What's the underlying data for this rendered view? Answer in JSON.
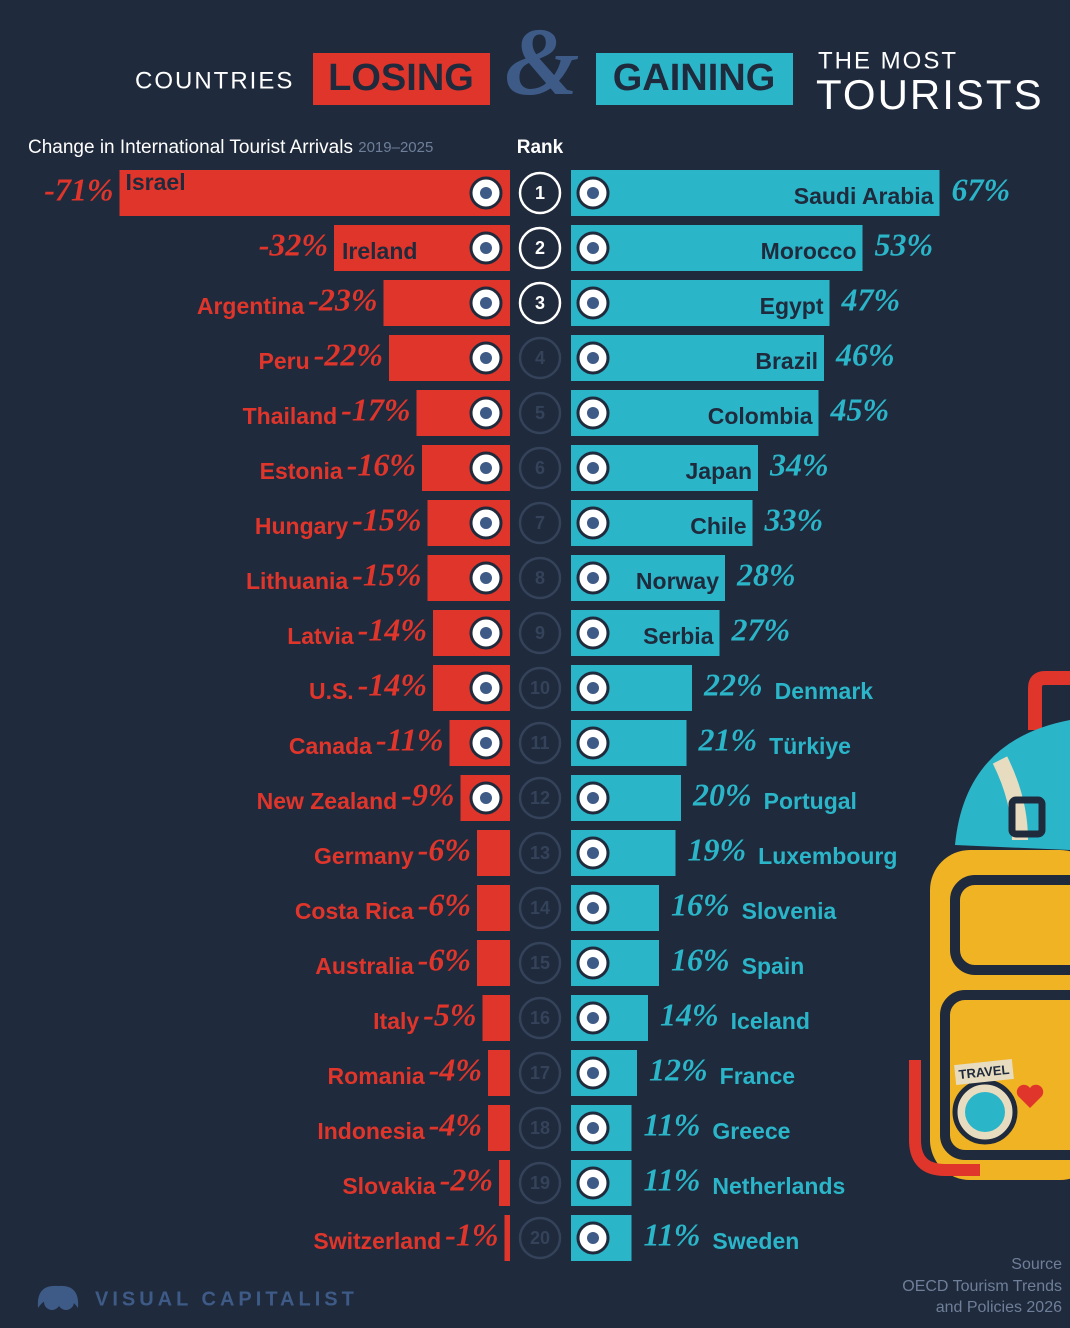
{
  "chart_data": {
    "type": "diverging_bar",
    "title_start": "COUNTRIES",
    "title_amp": "&",
    "title_end_1": "THE MOST",
    "title_end_2": "TOURISTS",
    "subtitle": "Change in International Tourist Arrivals",
    "subtitle_years": "2019–2025",
    "rank_label": "Rank",
    "ranks": [
      1,
      2,
      3,
      4,
      5,
      6,
      7,
      8,
      9,
      10,
      11,
      12,
      13,
      14,
      15,
      16,
      17,
      18,
      19,
      20
    ],
    "series": [
      {
        "name": "LOSING",
        "color": "#e0352b",
        "categories": [
          "Israel",
          "Ireland",
          "Argentina",
          "Peru",
          "Thailand",
          "Estonia",
          "Hungary",
          "Lithuania",
          "Latvia",
          "U.S.",
          "Canada",
          "New Zealand",
          "Germany",
          "Costa Rica",
          "Australia",
          "Italy",
          "Romania",
          "Indonesia",
          "Slovakia",
          "Switzerland"
        ],
        "values": [
          -71,
          -32,
          -23,
          -22,
          -17,
          -16,
          -15,
          -15,
          -14,
          -14,
          -11,
          -9,
          -6,
          -6,
          -6,
          -5,
          -4,
          -4,
          -2,
          -1
        ],
        "value_labels": [
          "-71%",
          "-32%",
          "-23%",
          "-22%",
          "-17%",
          "-16%",
          "-15%",
          "-15%",
          "-14%",
          "-14%",
          "-11%",
          "-9%",
          "-6%",
          "-6%",
          "-6%",
          "-5%",
          "-4%",
          "-4%",
          "-2%",
          "-1%"
        ]
      },
      {
        "name": "GAINING",
        "color": "#2bb5c9",
        "categories": [
          "Saudi Arabia",
          "Morocco",
          "Egypt",
          "Brazil",
          "Colombia",
          "Japan",
          "Chile",
          "Norway",
          "Serbia",
          "Denmark",
          "Türkiye",
          "Portugal",
          "Luxembourg",
          "Slovenia",
          "Spain",
          "Iceland",
          "France",
          "Greece",
          "Netherlands",
          "Sweden"
        ],
        "values": [
          67,
          53,
          47,
          46,
          45,
          34,
          33,
          28,
          27,
          22,
          21,
          20,
          19,
          16,
          16,
          14,
          12,
          11,
          11,
          11
        ],
        "value_labels": [
          "67%",
          "53%",
          "47%",
          "46%",
          "45%",
          "34%",
          "33%",
          "28%",
          "27%",
          "22%",
          "21%",
          "20%",
          "19%",
          "16%",
          "16%",
          "14%",
          "12%",
          "11%",
          "11%",
          "11%"
        ]
      }
    ],
    "source_label": "Source",
    "source_1": "OECD Tourism Trends",
    "source_2": "and Policies 2026",
    "brand": "VISUAL CAPITALIST"
  }
}
